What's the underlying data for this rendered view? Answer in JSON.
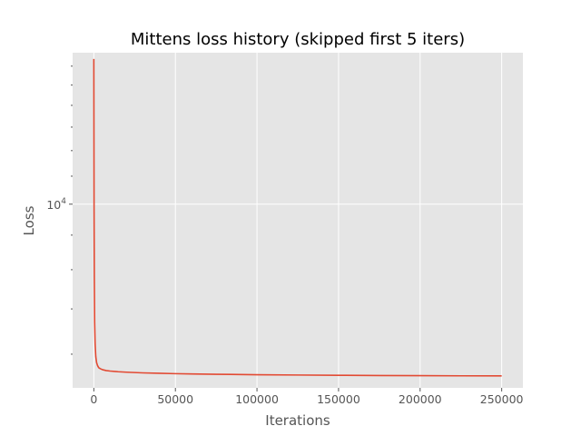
{
  "chart_data": {
    "type": "line",
    "title": "Mittens loss history (skipped first 5 iters)",
    "xlabel": "Iterations",
    "ylabel": "Loss",
    "y_scale": "log",
    "xlim": [
      -13000,
      263000
    ],
    "ylim": [
      5350,
      16750
    ],
    "grid": true,
    "x_ticks": [
      {
        "value": 0,
        "label": "0"
      },
      {
        "value": 50000,
        "label": "50000"
      },
      {
        "value": 100000,
        "label": "100000"
      },
      {
        "value": 150000,
        "label": "150000"
      },
      {
        "value": 200000,
        "label": "200000"
      },
      {
        "value": 250000,
        "label": "250000"
      }
    ],
    "y_major_ticks": [
      {
        "value": 10000,
        "base": "10",
        "exp": "4"
      }
    ],
    "y_minor_ticks": [
      5000,
      6000,
      7000,
      8000,
      9000,
      11000,
      12000,
      13000,
      14000,
      15000,
      16000
    ],
    "colors": {
      "background": "#E5E5E5",
      "line": "#E24A33",
      "grid": "#FFFFFF",
      "text": "#555555"
    },
    "series": [
      {
        "x": [
          0,
          150,
          300,
          500,
          800,
          1200,
          1700,
          2300,
          3000,
          4000,
          5500,
          7500,
          10000,
          15000,
          20000,
          30000,
          40000,
          50000,
          60000,
          75000,
          100000,
          125000,
          150000,
          175000,
          200000,
          225000,
          250000
        ],
        "y": [
          16400,
          9800,
          7800,
          6700,
          6200,
          5950,
          5830,
          5770,
          5730,
          5710,
          5690,
          5675,
          5665,
          5652,
          5643,
          5630,
          5622,
          5615,
          5610,
          5603,
          5595,
          5589,
          5584,
          5580,
          5577,
          5574,
          5572
        ]
      }
    ]
  }
}
